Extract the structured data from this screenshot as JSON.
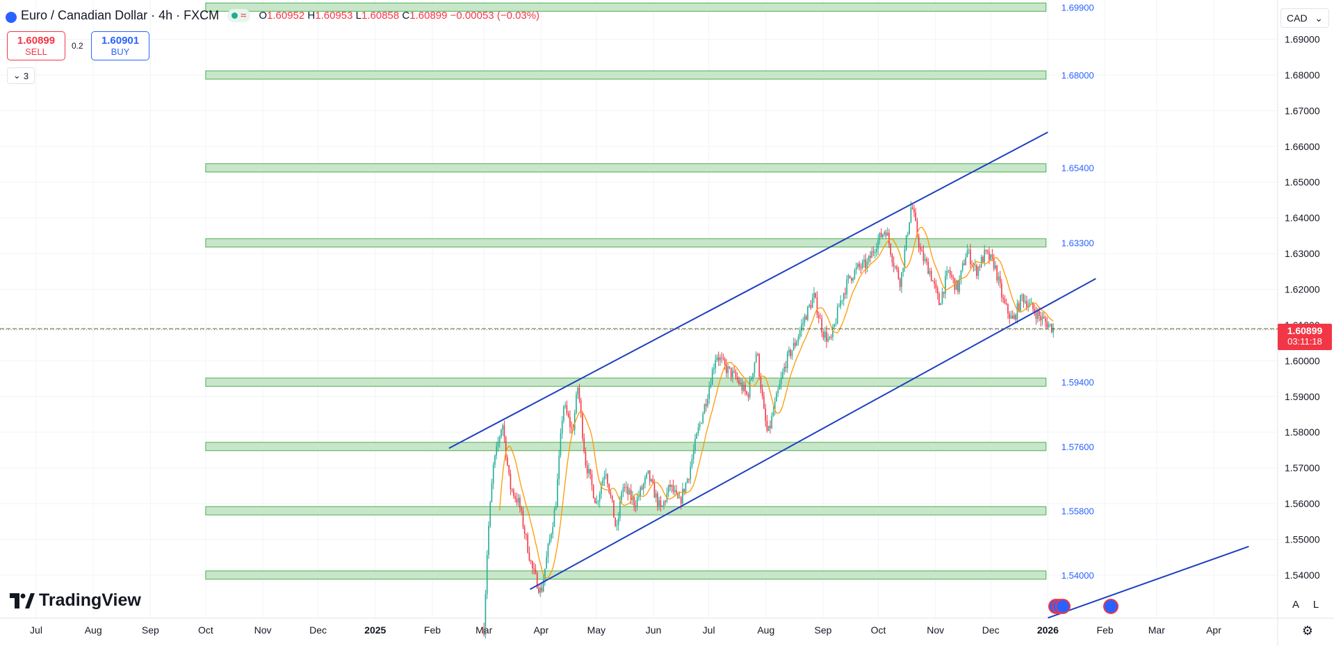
{
  "header": {
    "symbol_icon": "euro-flag-icon",
    "title": "Euro / Canadian Dollar · 4h · FXCM",
    "market_status_icon": "market-open-dot-icon",
    "wave_icon": "approx-icon",
    "ohlc": {
      "o_label": "O",
      "o": "1.60952",
      "h_label": "H",
      "h": "1.60953",
      "l_label": "L",
      "l": "1.60858",
      "c_label": "C",
      "c": "1.60899",
      "change": "−0.00053 (−0.03%)"
    }
  },
  "trade": {
    "sell_price": "1.60899",
    "sell_label": "SELL",
    "spread": "0.2",
    "buy_price": "1.60901",
    "buy_label": "BUY"
  },
  "indicators_toggle": {
    "count": "3"
  },
  "currency_select": "CAD",
  "last_price": {
    "price": "1.60899",
    "countdown": "03:11:18"
  },
  "branding": {
    "logo_text": "TradingView"
  },
  "scale_buttons": {
    "auto": "A",
    "log": "L"
  },
  "colors": {
    "up": "#22ab94",
    "down": "#f23645",
    "ma": "#ff9800",
    "channel": "#1c3fbf",
    "zone_fill": "#c8e6c9",
    "zone_stroke": "#4caf50",
    "zone_label": "#2962ff",
    "grid": "#f0f3fa"
  },
  "chart_data": {
    "type": "candlestick",
    "symbol": "EURCAD",
    "timeframe": "4h",
    "ylim": [
      1.5285,
      1.6975
    ],
    "y_ticks": [
      "1.69000",
      "1.68000",
      "1.67000",
      "1.66000",
      "1.65000",
      "1.64000",
      "1.63000",
      "1.62000",
      "1.61000",
      "1.60000",
      "1.59000",
      "1.58000",
      "1.57000",
      "1.56000",
      "1.55000",
      "1.54000"
    ],
    "x_ticks": [
      {
        "label": "Jul",
        "t": "2024-07-01"
      },
      {
        "label": "Aug",
        "t": "2024-08-01"
      },
      {
        "label": "Sep",
        "t": "2024-09-01"
      },
      {
        "label": "Oct",
        "t": "2024-10-01"
      },
      {
        "label": "Nov",
        "t": "2024-11-01"
      },
      {
        "label": "Dec",
        "t": "2024-12-01"
      },
      {
        "label": "2025",
        "t": "2025-01-01"
      },
      {
        "label": "Feb",
        "t": "2025-02-01"
      },
      {
        "label": "Mar",
        "t": "2025-03-01"
      },
      {
        "label": "Apr",
        "t": "2025-04-01"
      },
      {
        "label": "May",
        "t": "2025-05-01"
      },
      {
        "label": "Jun",
        "t": "2025-06-01"
      },
      {
        "label": "Jul",
        "t": "2025-07-01"
      },
      {
        "label": "Aug",
        "t": "2025-08-01"
      },
      {
        "label": "Sep",
        "t": "2025-09-01"
      },
      {
        "label": "Oct",
        "t": "2025-10-01"
      },
      {
        "label": "Nov",
        "t": "2025-11-01"
      },
      {
        "label": "Dec",
        "t": "2025-12-01"
      },
      {
        "label": "2026",
        "t": "2026-01-01"
      },
      {
        "label": "Feb",
        "t": "2026-02-01"
      },
      {
        "label": "Mar",
        "t": "2026-03-01"
      },
      {
        "label": "Apr",
        "t": "2026-04-01"
      }
    ],
    "bold_x_ticks": [
      "2025",
      "2026"
    ],
    "price_path": [
      [
        "2025-03-01",
        1.525
      ],
      [
        "2025-03-03",
        1.55
      ],
      [
        "2025-03-06",
        1.57
      ],
      [
        "2025-03-11",
        1.583
      ],
      [
        "2025-03-15",
        1.565
      ],
      [
        "2025-03-20",
        1.56
      ],
      [
        "2025-03-27",
        1.542
      ],
      [
        "2025-04-01",
        1.535
      ],
      [
        "2025-04-05",
        1.548
      ],
      [
        "2025-04-09",
        1.56
      ],
      [
        "2025-04-13",
        1.588
      ],
      [
        "2025-04-18",
        1.58
      ],
      [
        "2025-04-21",
        1.593
      ],
      [
        "2025-04-25",
        1.572
      ],
      [
        "2025-05-01",
        1.56
      ],
      [
        "2025-05-06",
        1.57
      ],
      [
        "2025-05-12",
        1.552
      ],
      [
        "2025-05-15",
        1.565
      ],
      [
        "2025-05-22",
        1.56
      ],
      [
        "2025-05-29",
        1.568
      ],
      [
        "2025-06-05",
        1.558
      ],
      [
        "2025-06-10",
        1.565
      ],
      [
        "2025-06-15",
        1.56
      ],
      [
        "2025-06-20",
        1.568
      ],
      [
        "2025-06-25",
        1.58
      ],
      [
        "2025-06-30",
        1.59
      ],
      [
        "2025-07-05",
        1.602
      ],
      [
        "2025-07-10",
        1.598
      ],
      [
        "2025-07-16",
        1.595
      ],
      [
        "2025-07-22",
        1.59
      ],
      [
        "2025-07-27",
        1.603
      ],
      [
        "2025-07-31",
        1.585
      ],
      [
        "2025-08-02",
        1.579
      ],
      [
        "2025-08-07",
        1.59
      ],
      [
        "2025-08-12",
        1.6
      ],
      [
        "2025-08-17",
        1.605
      ],
      [
        "2025-08-22",
        1.612
      ],
      [
        "2025-08-27",
        1.618
      ],
      [
        "2025-09-01",
        1.608
      ],
      [
        "2025-09-05",
        1.605
      ],
      [
        "2025-09-10",
        1.616
      ],
      [
        "2025-09-15",
        1.623
      ],
      [
        "2025-09-20",
        1.626
      ],
      [
        "2025-09-25",
        1.627
      ],
      [
        "2025-09-30",
        1.633
      ],
      [
        "2025-10-05",
        1.637
      ],
      [
        "2025-10-09",
        1.628
      ],
      [
        "2025-10-13",
        1.622
      ],
      [
        "2025-10-19",
        1.644
      ],
      [
        "2025-10-24",
        1.63
      ],
      [
        "2025-10-29",
        1.625
      ],
      [
        "2025-11-03",
        1.616
      ],
      [
        "2025-11-08",
        1.625
      ],
      [
        "2025-11-13",
        1.62
      ],
      [
        "2025-11-18",
        1.631
      ],
      [
        "2025-11-23",
        1.625
      ],
      [
        "2025-11-28",
        1.63
      ],
      [
        "2025-12-03",
        1.627
      ],
      [
        "2025-12-08",
        1.616
      ],
      [
        "2025-12-13",
        1.611
      ],
      [
        "2025-12-18",
        1.618
      ],
      [
        "2025-12-23",
        1.615
      ],
      [
        "2025-12-28",
        1.612
      ],
      [
        "2026-01-04",
        1.609
      ]
    ],
    "zones": [
      {
        "label": "1.69900",
        "value": 1.699,
        "start": "2024-10-01"
      },
      {
        "label": "1.68000",
        "value": 1.68,
        "start": "2024-10-01"
      },
      {
        "label": "1.65400",
        "value": 1.654,
        "start": "2024-10-01"
      },
      {
        "label": "1.63300",
        "value": 1.633,
        "start": "2024-10-01"
      },
      {
        "label": "1.59400",
        "value": 1.594,
        "start": "2024-10-01"
      },
      {
        "label": "1.57600",
        "value": 1.576,
        "start": "2024-10-01"
      },
      {
        "label": "1.55800",
        "value": 1.558,
        "start": "2024-10-01"
      },
      {
        "label": "1.54000",
        "value": 1.54,
        "start": "2024-10-01"
      }
    ],
    "zones_end": "2025-12-31",
    "trendlines": [
      {
        "name": "channel-upper",
        "p1": [
          "2025-02-10",
          1.5755
        ],
        "p2": [
          "2026-01-01",
          1.664
        ]
      },
      {
        "name": "channel-lower",
        "p1": [
          "2025-03-26",
          1.536
        ],
        "p2": [
          "2026-01-27",
          1.623
        ]
      },
      {
        "name": "lower-extension",
        "p1": [
          "2026-01-01",
          1.528
        ],
        "p2": [
          "2026-04-20",
          1.548
        ]
      }
    ],
    "last_price": 1.60899,
    "grid": true
  }
}
